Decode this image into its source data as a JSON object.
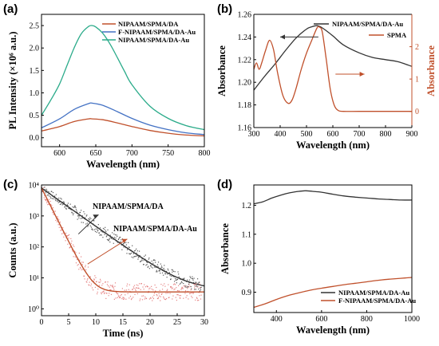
{
  "figure": {
    "panel_labels": [
      "(a)",
      "(b)",
      "(c)",
      "(d)"
    ]
  },
  "colors": {
    "red": "#c0502b",
    "blue": "#4472c4",
    "teal": "#2bab8a",
    "dark": "#333333",
    "scatter_red": "#e06666"
  },
  "chart_data": [
    {
      "panel": "(a)",
      "type": "line",
      "xlabel": "Wavelength (nm)",
      "ylabel": "PL Intensity (×10⁶ a.u.)",
      "xlim": [
        575,
        800
      ],
      "ylim": [
        -0.2,
        2.75
      ],
      "xticks": [
        600,
        650,
        700,
        750,
        800
      ],
      "yticks": [
        0.0,
        0.5,
        1.0,
        1.5,
        2.0,
        2.5
      ],
      "legend_position": "top-right",
      "series": [
        {
          "name": "NIPAAM/SPMA/DA",
          "color_key": "red",
          "x": [
            575,
            600,
            620,
            640,
            645,
            660,
            680,
            700,
            725,
            750,
            775,
            800
          ],
          "y": [
            0.15,
            0.25,
            0.36,
            0.42,
            0.42,
            0.4,
            0.33,
            0.25,
            0.16,
            0.1,
            0.06,
            0.04
          ]
        },
        {
          "name": "F-NIPAAM/SPMA/DA-Au",
          "color_key": "blue",
          "x": [
            575,
            600,
            620,
            640,
            645,
            660,
            680,
            700,
            725,
            750,
            775,
            800
          ],
          "y": [
            0.22,
            0.42,
            0.63,
            0.76,
            0.77,
            0.72,
            0.58,
            0.43,
            0.28,
            0.18,
            0.11,
            0.07
          ]
        },
        {
          "name": "NIPAAM/SPMA/DA-Au",
          "color_key": "teal",
          "x": [
            575,
            590,
            600,
            610,
            620,
            630,
            640,
            645,
            650,
            660,
            670,
            680,
            690,
            700,
            725,
            750,
            775,
            800
          ],
          "y": [
            0.5,
            0.9,
            1.2,
            1.6,
            2.0,
            2.32,
            2.48,
            2.5,
            2.47,
            2.32,
            2.08,
            1.78,
            1.47,
            1.18,
            0.7,
            0.43,
            0.27,
            0.18
          ]
        }
      ]
    },
    {
      "panel": "(b)",
      "type": "line",
      "xlabel": "Wavelength (nm)",
      "ylabel": "Absorbance",
      "ylabel_right": "Absorbance",
      "xlim": [
        300,
        900
      ],
      "ylim": [
        1.16,
        1.26
      ],
      "ylim_right": [
        -0.5,
        3.0
      ],
      "xticks": [
        300,
        400,
        500,
        600,
        700,
        800,
        900
      ],
      "yticks": [
        1.16,
        1.18,
        1.2,
        1.22,
        1.24,
        1.26
      ],
      "yticks_right": [
        0,
        1,
        2
      ],
      "legend_position": "top-right",
      "series": [
        {
          "name": "NIPAAM/SPMA/DA-Au",
          "axis": "left",
          "color_key": "dark",
          "x": [
            300,
            340,
            380,
            420,
            460,
            500,
            520,
            540,
            560,
            600,
            640,
            700,
            750,
            800,
            850,
            900
          ],
          "y": [
            1.193,
            1.205,
            1.216,
            1.228,
            1.239,
            1.247,
            1.249,
            1.25,
            1.248,
            1.241,
            1.233,
            1.226,
            1.222,
            1.22,
            1.218,
            1.214
          ]
        },
        {
          "name": "SPMA",
          "axis": "right",
          "color_key": "red",
          "x": [
            300,
            310,
            320,
            330,
            345,
            360,
            375,
            390,
            410,
            430,
            445,
            460,
            480,
            500,
            520,
            540,
            550,
            560,
            575,
            590,
            605,
            620,
            640,
            700,
            800,
            900
          ],
          "y": [
            1.3,
            1.5,
            1.3,
            1.5,
            1.9,
            2.2,
            1.9,
            1.2,
            0.5,
            0.25,
            0.35,
            0.7,
            1.3,
            1.8,
            2.2,
            2.58,
            2.6,
            2.45,
            1.6,
            0.7,
            0.2,
            0.03,
            0.0,
            0.0,
            0.0,
            0.0
          ]
        }
      ]
    },
    {
      "panel": "(c)",
      "type": "scatter",
      "xlabel": "Time (ns)",
      "ylabel": "Counts (a.u.)",
      "yscale": "log",
      "xlim": [
        0,
        30
      ],
      "ylim": [
        0.6,
        10000
      ],
      "xticks": [
        0,
        5,
        10,
        15,
        20,
        25,
        30
      ],
      "yticks": [
        1,
        10,
        100,
        1000,
        10000
      ],
      "ytick_labels": [
        "10⁰",
        "10¹",
        "10²",
        "10³",
        "10⁴"
      ],
      "series": [
        {
          "name": "NIPAAM/SPMA/DA",
          "color_key": "dark",
          "tau": 3.5,
          "amp": 8000,
          "floor": 4
        },
        {
          "name": "NIPAAM/SPMA/DA-Au",
          "color_key": "red",
          "tau": 1.25,
          "amp": 8000,
          "floor": 3.5
        }
      ]
    },
    {
      "panel": "(d)",
      "type": "line",
      "xlabel": "Wavelength (nm)",
      "ylabel": "Absorbance",
      "xlim": [
        300,
        1000
      ],
      "ylim": [
        0.83,
        1.27
      ],
      "xticks": [
        400,
        600,
        800,
        1000
      ],
      "yticks": [
        0.9,
        1.0,
        1.1,
        1.2
      ],
      "legend_position": "bottom-right",
      "series": [
        {
          "name": "NIPAAM/SPMA/DA-Au",
          "color_key": "dark",
          "x": [
            300,
            340,
            380,
            420,
            460,
            500,
            530,
            560,
            600,
            650,
            700,
            750,
            800,
            850,
            900,
            950,
            1000
          ],
          "y": [
            1.205,
            1.212,
            1.225,
            1.235,
            1.243,
            1.248,
            1.25,
            1.248,
            1.245,
            1.238,
            1.232,
            1.228,
            1.225,
            1.222,
            1.22,
            1.218,
            1.218
          ]
        },
        {
          "name": "F-NIPAAM/SPMA/DA-Au",
          "color_key": "red",
          "x": [
            300,
            350,
            400,
            450,
            500,
            550,
            600,
            650,
            700,
            750,
            800,
            850,
            900,
            950,
            1000
          ],
          "y": [
            0.848,
            0.86,
            0.875,
            0.888,
            0.898,
            0.907,
            0.914,
            0.92,
            0.926,
            0.931,
            0.936,
            0.941,
            0.945,
            0.948,
            0.951
          ]
        }
      ]
    }
  ]
}
